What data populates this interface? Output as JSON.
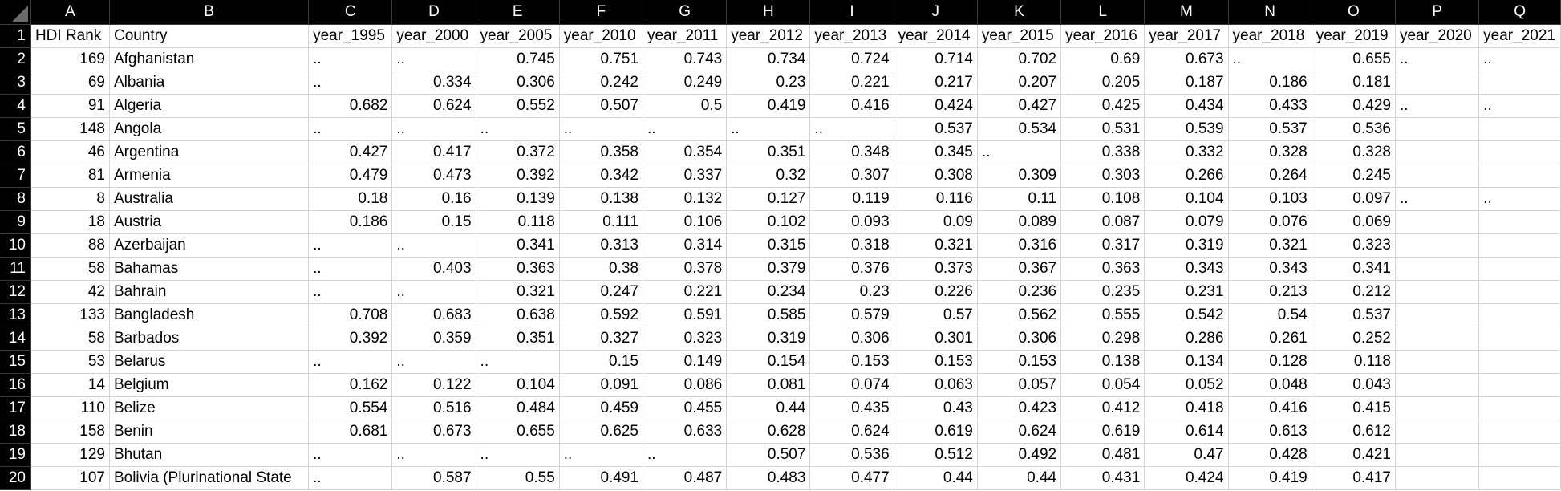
{
  "columns": [
    "A",
    "B",
    "C",
    "D",
    "E",
    "F",
    "G",
    "H",
    "I",
    "J",
    "K",
    "L",
    "M",
    "N",
    "O",
    "P",
    "Q"
  ],
  "rows": [
    {
      "n": "1",
      "cells": [
        "HDI Rank",
        "Country",
        "year_1995",
        "year_2000",
        "year_2005",
        "year_2010",
        "year_2011",
        "year_2012",
        "year_2013",
        "year_2014",
        "year_2015",
        "year_2016",
        "year_2017",
        "year_2018",
        "year_2019",
        "year_2020",
        "year_2021"
      ]
    },
    {
      "n": "2",
      "cells": [
        "169",
        "Afghanistan",
        "..",
        "..",
        "0.745",
        "0.751",
        "0.743",
        "0.734",
        "0.724",
        "0.714",
        "0.702",
        "0.69",
        "0.673",
        "..",
        "0.655",
        "..",
        ".."
      ]
    },
    {
      "n": "3",
      "cells": [
        "69",
        "Albania",
        "..",
        "0.334",
        "0.306",
        "0.242",
        "0.249",
        "0.23",
        "0.221",
        "0.217",
        "0.207",
        "0.205",
        "0.187",
        "0.186",
        "0.181",
        "",
        ""
      ]
    },
    {
      "n": "4",
      "cells": [
        "91",
        "Algeria",
        "0.682",
        "0.624",
        "0.552",
        "0.507",
        "0.5",
        "0.419",
        "0.416",
        "0.424",
        "0.427",
        "0.425",
        "0.434",
        "0.433",
        "0.429",
        "..",
        ".."
      ]
    },
    {
      "n": "5",
      "cells": [
        "148",
        "Angola",
        "..",
        "..",
        "..",
        "..",
        "..",
        "..",
        "..",
        "0.537",
        "0.534",
        "0.531",
        "0.539",
        "0.537",
        "0.536",
        "",
        ""
      ]
    },
    {
      "n": "6",
      "cells": [
        "46",
        "Argentina",
        "0.427",
        "0.417",
        "0.372",
        "0.358",
        "0.354",
        "0.351",
        "0.348",
        "0.345",
        "..",
        "0.338",
        "0.332",
        "0.328",
        "0.328",
        "",
        ""
      ]
    },
    {
      "n": "7",
      "cells": [
        "81",
        "Armenia",
        "0.479",
        "0.473",
        "0.392",
        "0.342",
        "0.337",
        "0.32",
        "0.307",
        "0.308",
        "0.309",
        "0.303",
        "0.266",
        "0.264",
        "0.245",
        "",
        ""
      ]
    },
    {
      "n": "8",
      "cells": [
        "8",
        "Australia",
        "0.18",
        "0.16",
        "0.139",
        "0.138",
        "0.132",
        "0.127",
        "0.119",
        "0.116",
        "0.11",
        "0.108",
        "0.104",
        "0.103",
        "0.097",
        "..",
        ".."
      ]
    },
    {
      "n": "9",
      "cells": [
        "18",
        "Austria",
        "0.186",
        "0.15",
        "0.118",
        "0.111",
        "0.106",
        "0.102",
        "0.093",
        "0.09",
        "0.089",
        "0.087",
        "0.079",
        "0.076",
        "0.069",
        "",
        ""
      ]
    },
    {
      "n": "10",
      "cells": [
        "88",
        "Azerbaijan",
        "..",
        "..",
        "0.341",
        "0.313",
        "0.314",
        "0.315",
        "0.318",
        "0.321",
        "0.316",
        "0.317",
        "0.319",
        "0.321",
        "0.323",
        "",
        ""
      ]
    },
    {
      "n": "11",
      "cells": [
        "58",
        "Bahamas",
        "..",
        "0.403",
        "0.363",
        "0.38",
        "0.378",
        "0.379",
        "0.376",
        "0.373",
        "0.367",
        "0.363",
        "0.343",
        "0.343",
        "0.341",
        "",
        ""
      ]
    },
    {
      "n": "12",
      "cells": [
        "42",
        "Bahrain",
        "..",
        "..",
        "0.321",
        "0.247",
        "0.221",
        "0.234",
        "0.23",
        "0.226",
        "0.236",
        "0.235",
        "0.231",
        "0.213",
        "0.212",
        "",
        ""
      ]
    },
    {
      "n": "13",
      "cells": [
        "133",
        "Bangladesh",
        "0.708",
        "0.683",
        "0.638",
        "0.592",
        "0.591",
        "0.585",
        "0.579",
        "0.57",
        "0.562",
        "0.555",
        "0.542",
        "0.54",
        "0.537",
        "",
        ""
      ]
    },
    {
      "n": "14",
      "cells": [
        "58",
        "Barbados",
        "0.392",
        "0.359",
        "0.351",
        "0.327",
        "0.323",
        "0.319",
        "0.306",
        "0.301",
        "0.306",
        "0.298",
        "0.286",
        "0.261",
        "0.252",
        "",
        ""
      ]
    },
    {
      "n": "15",
      "cells": [
        "53",
        "Belarus",
        "..",
        "..",
        "..",
        "0.15",
        "0.149",
        "0.154",
        "0.153",
        "0.153",
        "0.153",
        "0.138",
        "0.134",
        "0.128",
        "0.118",
        "",
        ""
      ]
    },
    {
      "n": "16",
      "cells": [
        "14",
        "Belgium",
        "0.162",
        "0.122",
        "0.104",
        "0.091",
        "0.086",
        "0.081",
        "0.074",
        "0.063",
        "0.057",
        "0.054",
        "0.052",
        "0.048",
        "0.043",
        "",
        ""
      ]
    },
    {
      "n": "17",
      "cells": [
        "110",
        "Belize",
        "0.554",
        "0.516",
        "0.484",
        "0.459",
        "0.455",
        "0.44",
        "0.435",
        "0.43",
        "0.423",
        "0.412",
        "0.418",
        "0.416",
        "0.415",
        "",
        ""
      ]
    },
    {
      "n": "18",
      "cells": [
        "158",
        "Benin",
        "0.681",
        "0.673",
        "0.655",
        "0.625",
        "0.633",
        "0.628",
        "0.624",
        "0.619",
        "0.624",
        "0.619",
        "0.614",
        "0.613",
        "0.612",
        "",
        ""
      ]
    },
    {
      "n": "19",
      "cells": [
        "129",
        "Bhutan",
        "..",
        "..",
        "..",
        "..",
        "..",
        "0.507",
        "0.536",
        "0.512",
        "0.492",
        "0.481",
        "0.47",
        "0.428",
        "0.421",
        "",
        ""
      ]
    },
    {
      "n": "20",
      "cells": [
        "107",
        "Bolivia (Plurinational State",
        "..",
        "0.587",
        "0.55",
        "0.491",
        "0.487",
        "0.483",
        "0.477",
        "0.44",
        "0.44",
        "0.431",
        "0.424",
        "0.419",
        "0.417",
        "",
        ""
      ]
    }
  ]
}
